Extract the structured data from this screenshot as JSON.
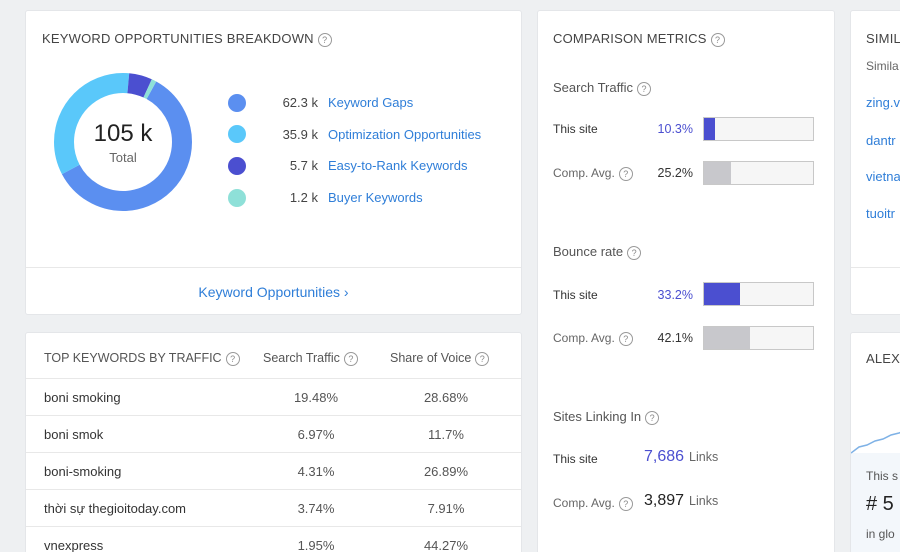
{
  "kw_breakdown": {
    "title": "KEYWORD OPPORTUNITIES BREAKDOWN",
    "total": "105 k",
    "total_label": "Total",
    "items": [
      {
        "value": "62.3 k",
        "label": "Keyword Gaps",
        "color": "#5b8ff0",
        "amount": 62.3
      },
      {
        "value": "35.9 k",
        "label": "Optimization Opportunities",
        "color": "#5ac8fa",
        "amount": 35.9
      },
      {
        "value": "5.7 k",
        "label": "Easy-to-Rank Keywords",
        "color": "#4b4fd0",
        "amount": 5.7
      },
      {
        "value": "1.2 k",
        "label": "Buyer Keywords",
        "color": "#8ee0d8",
        "amount": 1.2
      }
    ],
    "footer_link": "Keyword Opportunities ›"
  },
  "top_keywords": {
    "title": "TOP KEYWORDS BY TRAFFIC",
    "col_traffic": "Search Traffic",
    "col_voice": "Share of Voice",
    "rows": [
      {
        "keyword": "boni smoking",
        "traffic": "19.48%",
        "voice": "28.68%"
      },
      {
        "keyword": "boni smok",
        "traffic": "6.97%",
        "voice": "11.7%"
      },
      {
        "keyword": "boni-smoking",
        "traffic": "4.31%",
        "voice": "26.89%"
      },
      {
        "keyword": "thời sự thegioitoday.com",
        "traffic": "3.74%",
        "voice": "7.91%"
      },
      {
        "keyword": "vnexpress",
        "traffic": "1.95%",
        "voice": "44.27%"
      }
    ]
  },
  "comparison": {
    "title": "COMPARISON METRICS",
    "this_site_label": "This site",
    "comp_avg_label": "Comp. Avg.",
    "search_traffic": {
      "title": "Search Traffic",
      "this_site": "10.3%",
      "this_pct": 10.3,
      "comp_avg": "25.2%",
      "comp_pct": 25.2
    },
    "bounce_rate": {
      "title": "Bounce rate",
      "this_site": "33.2%",
      "this_pct": 33.2,
      "comp_avg": "42.1%",
      "comp_pct": 42.1
    },
    "sites_linking": {
      "title": "Sites Linking In",
      "this_site": "7,686",
      "comp_avg": "3,897",
      "unit": "Links"
    },
    "colors": {
      "this_site": "#4b4fd0",
      "comp_avg": "#c8c8cc"
    }
  },
  "similar": {
    "title": "SIMIL",
    "subtitle": "Simila",
    "items": [
      "zing.v",
      "dantr",
      "vietna",
      "tuoitr"
    ]
  },
  "alexa": {
    "title": "ALEXA",
    "line1": "This s",
    "rank": "# 5",
    "line2": "in glo"
  }
}
